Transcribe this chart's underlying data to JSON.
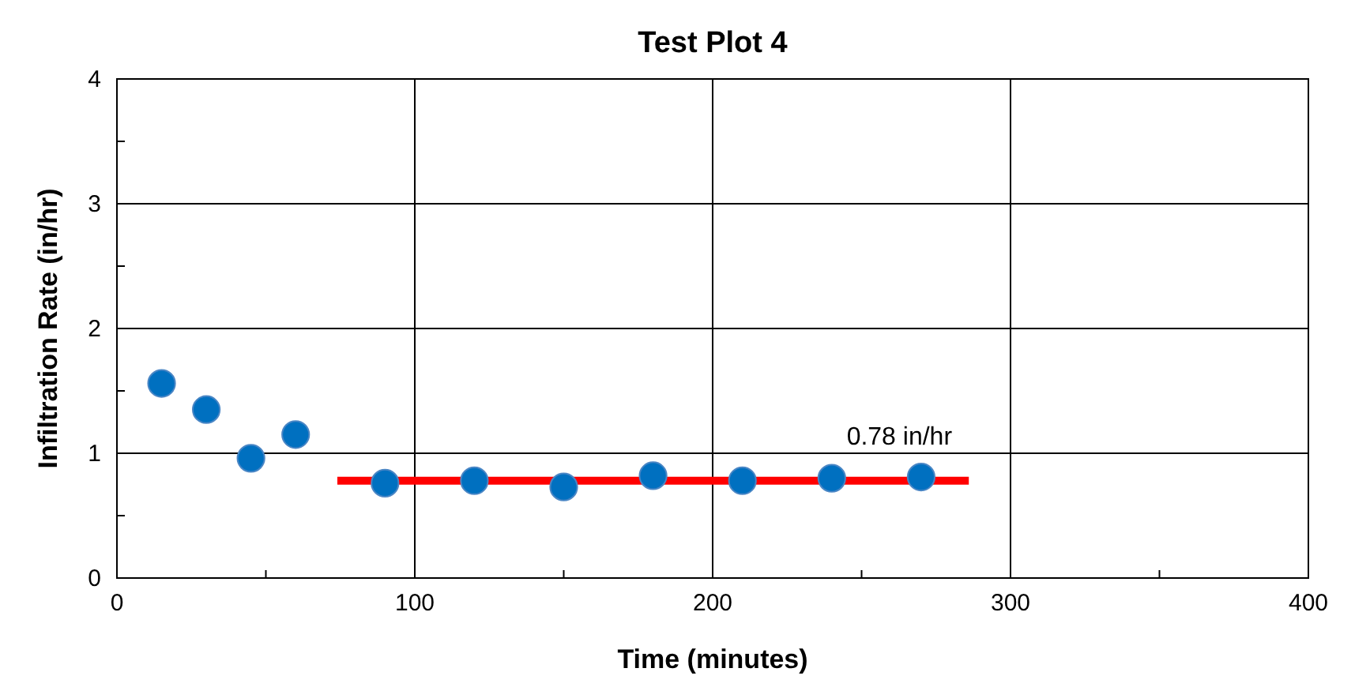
{
  "chart_data": {
    "type": "scatter",
    "title": "Test Plot 4",
    "xlabel": "Time (minutes)",
    "ylabel": "Infiltration Rate (in/hr)",
    "x": [
      15,
      30,
      45,
      60,
      90,
      120,
      150,
      180,
      210,
      240,
      270
    ],
    "series": [
      {
        "marker": "circle",
        "color": "#0070c0",
        "values": [
          1.56,
          1.35,
          0.96,
          1.15,
          0.76,
          0.78,
          0.73,
          0.82,
          0.78,
          0.8,
          0.81
        ]
      },
      {
        "type": "line",
        "marker": "none",
        "color": "#ff0000",
        "x": [
          74,
          286
        ],
        "values": [
          0.78,
          0.78
        ]
      }
    ],
    "annotations": [
      {
        "text": "0.78 in/hr",
        "x": 245,
        "y": 0.78
      }
    ],
    "xlim": [
      0,
      400
    ],
    "xticks": [
      0,
      {
        "value": 50,
        "label": null
      },
      100,
      {
        "value": 150,
        "label": null
      },
      200,
      {
        "value": 250,
        "label": null
      },
      300,
      {
        "value": 350,
        "label": null
      },
      400
    ],
    "ylim": [
      0,
      4
    ],
    "yticks": [
      0,
      {
        "value": 0.5,
        "label": null
      },
      1,
      {
        "value": 1.5,
        "label": null
      },
      2,
      {
        "value": 2.5,
        "label": null
      },
      3,
      {
        "value": 3.5,
        "label": null
      },
      4
    ],
    "grid": true,
    "line_style": "solid"
  }
}
